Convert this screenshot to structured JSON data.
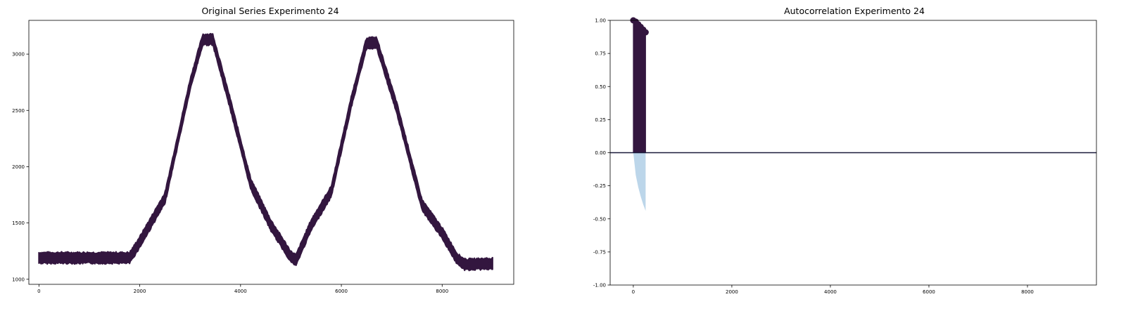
{
  "chart_data": [
    {
      "type": "line",
      "title": "Original Series Experimento 24",
      "xlabel": "",
      "ylabel": "",
      "xlim": [
        -200,
        9420
      ],
      "ylim": [
        955,
        3300
      ],
      "x_ticks": [
        0,
        2000,
        4000,
        6000,
        8000
      ],
      "y_ticks": [
        1000,
        1500,
        2000,
        2500,
        3000
      ],
      "noise_band": 50,
      "color": "#33163f",
      "grid": false,
      "series": [
        {
          "x": [
            0,
            1800,
            2000,
            2500,
            3000,
            3250,
            3450,
            3800,
            4200,
            4600,
            5000,
            5100,
            5400,
            5800,
            6200,
            6500,
            6700,
            7100,
            7600,
            8000,
            8300,
            8450,
            9000
          ],
          "y": [
            1190,
            1190,
            1330,
            1720,
            2730,
            3130,
            3130,
            2550,
            1850,
            1480,
            1200,
            1170,
            1480,
            1780,
            2580,
            3100,
            3100,
            2520,
            1660,
            1410,
            1180,
            1130,
            1140
          ]
        }
      ]
    },
    {
      "type": "area",
      "title": "Autocorrelation Experimento 24",
      "xlabel": "",
      "ylabel": "",
      "xlim": [
        -470,
        9400
      ],
      "ylim": [
        -1.0,
        1.0
      ],
      "x_ticks": [
        0,
        2000,
        4000,
        6000,
        8000
      ],
      "y_ticks": [
        "1.00",
        "0.75",
        "0.50",
        "0.25",
        "0.00",
        "-0.25",
        "-0.50",
        "-0.75",
        "-1.00"
      ],
      "color": "#33163f",
      "confidence_color": "#bcd6ea",
      "grid": false,
      "series": [
        {
          "lags": [
            0,
            50,
            100,
            150,
            200,
            250
          ],
          "acf": [
            1.0,
            0.99,
            0.97,
            0.95,
            0.93,
            0.91
          ],
          "conf_lower": [
            0.0,
            -0.17,
            -0.26,
            -0.33,
            -0.39,
            -0.44
          ]
        }
      ]
    }
  ]
}
